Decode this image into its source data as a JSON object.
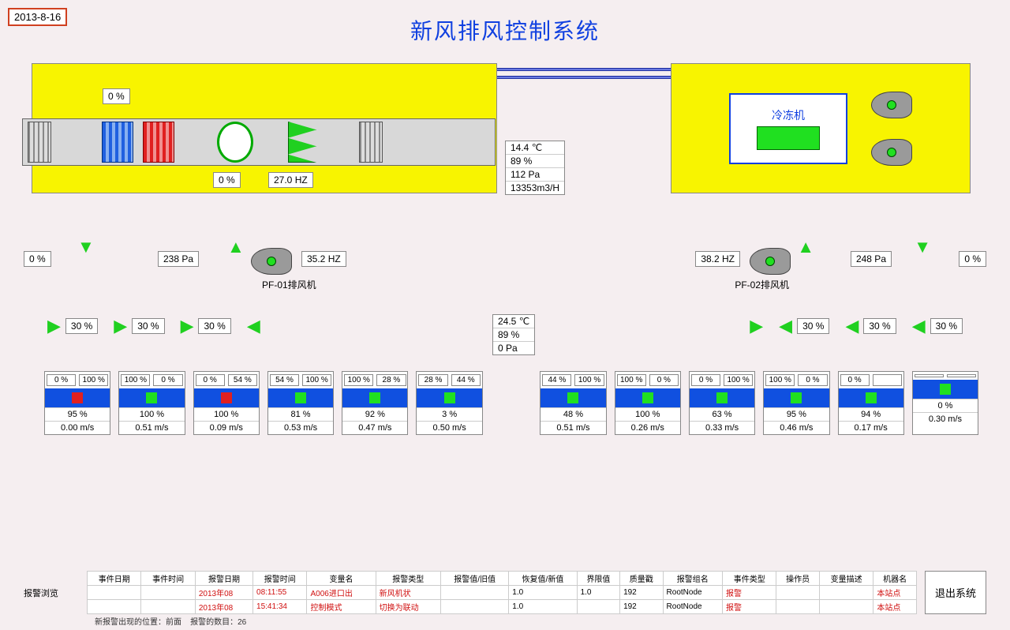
{
  "date": "2013-8-16",
  "title": "新风排风控制系统",
  "ahu": {
    "damper1": "0  %",
    "damper2": "0  %",
    "freq": "27.0 HZ"
  },
  "chiller": {
    "label": "冷冻机"
  },
  "sensor_main": {
    "temp": "14.4  ℃",
    "rh": "89  %",
    "press": "112  Pa",
    "flow": "13353m3/H"
  },
  "pf01": {
    "damper": "0  %",
    "press": "238  Pa",
    "freq": "35.2  HZ",
    "label": "PF-01排风机"
  },
  "pf02": {
    "damper": "0  %",
    "press": "248  Pa",
    "freq": "38.2  HZ",
    "label": "PF-02排风机"
  },
  "branch_left": [
    "30  %",
    "30  %",
    "30  %"
  ],
  "branch_right": [
    "30  %",
    "30  %",
    "30  %"
  ],
  "sensor_mid": {
    "temp": "24.5  ℃",
    "rh": "89  %",
    "press": "0  Pa"
  },
  "rooms": [
    {
      "d1": "0  %",
      "d2": "100 %",
      "st": "alarm",
      "v1": "95  %",
      "v2": "0.00 m/s"
    },
    {
      "d1": "100 %",
      "d2": "0  %",
      "st": "ok",
      "v1": "100  %",
      "v2": "0.51 m/s"
    },
    {
      "d1": "0  %",
      "d2": "54 %",
      "st": "alarm",
      "v1": "100  %",
      "v2": "0.09 m/s"
    },
    {
      "d1": "54 %",
      "d2": "100 %",
      "st": "ok",
      "v1": "81  %",
      "v2": "0.53 m/s"
    },
    {
      "d1": "100 %",
      "d2": "28 %",
      "st": "ok",
      "v1": "92  %",
      "v2": "0.47 m/s"
    },
    {
      "d1": "28 %",
      "d2": "44 %",
      "st": "ok",
      "v1": "3  %",
      "v2": "0.50 m/s"
    },
    {
      "d1": "44 %",
      "d2": "100 %",
      "st": "ok",
      "v1": "48  %",
      "v2": "0.51 m/s"
    },
    {
      "d1": "100 %",
      "d2": "0  %",
      "st": "ok",
      "v1": "100  %",
      "v2": "0.26 m/s"
    },
    {
      "d1": "0  %",
      "d2": "100 %",
      "st": "ok",
      "v1": "63  %",
      "v2": "0.33 m/s"
    },
    {
      "d1": "100 %",
      "d2": "0  %",
      "st": "ok",
      "v1": "95  %",
      "v2": "0.46 m/s"
    },
    {
      "d1": "0  %",
      "d2": "",
      "st": "ok",
      "v1": "94  %",
      "v2": "0.17 m/s"
    },
    {
      "d1": "",
      "d2": "",
      "st": "ok",
      "v1": "0  %",
      "v2": "0.30 m/s"
    }
  ],
  "alarm": {
    "label": "报警浏览",
    "headers": [
      "事件日期",
      "事件时间",
      "报警日期",
      "报警时间",
      "变量名",
      "报警类型",
      "报警值/旧值",
      "恢复值/新值",
      "界限值",
      "质量戳",
      "报警组名",
      "事件类型",
      "操作员",
      "变量描述",
      "机器名"
    ],
    "rows": [
      [
        "",
        "",
        "2013年08",
        "08:11:55",
        "A006进口出",
        "新风机状",
        "",
        "1.0",
        "1.0",
        "192",
        "RootNode",
        "报警",
        "",
        "",
        "本站点"
      ],
      [
        "",
        "",
        "2013年08",
        "15:41:34",
        "控制模式",
        "切换为联动",
        "",
        "1.0",
        "",
        "192",
        "RootNode",
        "报警",
        "",
        "",
        "本站点"
      ]
    ],
    "footer1": "新报警出现的位置：前面",
    "footer2": "报警的数目：26"
  },
  "exit": "退出系统"
}
